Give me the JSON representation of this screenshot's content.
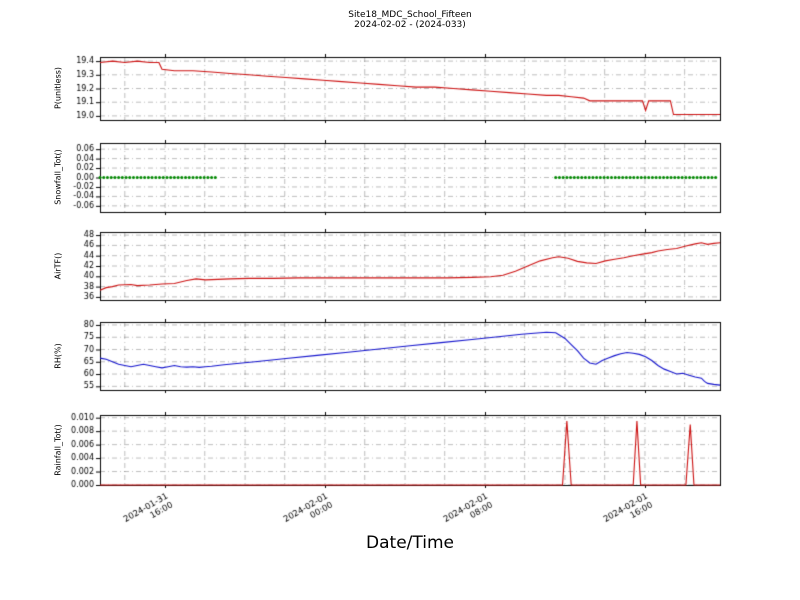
{
  "page": {
    "background": "#ffffff"
  },
  "chart_data": {
    "type": "line",
    "title": "Site18_MDC_School_Fifteen",
    "subtitle": "2024-02-02 - (2024-033)",
    "xlabel": "Date/Time",
    "grid": "dash-dot",
    "legend": "none",
    "x_axis": {
      "ticks": [
        {
          "frac": 0.105,
          "date": "2024-01-31",
          "time": "16:00"
        },
        {
          "frac": 0.363,
          "date": "2024-02-01",
          "time": "00:00"
        },
        {
          "frac": 0.621,
          "date": "2024-02-01",
          "time": "08:00"
        },
        {
          "frac": 0.879,
          "date": "2024-02-01",
          "time": "16:00"
        }
      ],
      "gridlines": [
        0.04,
        0.105,
        0.169,
        0.234,
        0.298,
        0.363,
        0.427,
        0.492,
        0.556,
        0.621,
        0.685,
        0.75,
        0.814,
        0.879,
        0.943
      ]
    },
    "panels": [
      {
        "ylabel": "P(unitless)",
        "ylim": [
          18.97,
          19.43
        ],
        "yticks": [
          {
            "v": 19.0,
            "label": "19.0"
          },
          {
            "v": 19.1,
            "label": "19.1"
          },
          {
            "v": 19.2,
            "label": "19.2"
          },
          {
            "v": 19.3,
            "label": "19.3"
          },
          {
            "v": 19.4,
            "label": "19.4"
          }
        ],
        "series": [
          {
            "name": "P",
            "type": "line",
            "color": "#cc1111",
            "points": [
              [
                0.0,
                19.39
              ],
              [
                0.02,
                19.4
              ],
              [
                0.04,
                19.39
              ],
              [
                0.06,
                19.4
              ],
              [
                0.08,
                19.39
              ],
              [
                0.095,
                19.39
              ],
              [
                0.1,
                19.34
              ],
              [
                0.12,
                19.33
              ],
              [
                0.15,
                19.33
              ],
              [
                0.18,
                19.32
              ],
              [
                0.21,
                19.31
              ],
              [
                0.24,
                19.3
              ],
              [
                0.27,
                19.29
              ],
              [
                0.3,
                19.28
              ],
              [
                0.33,
                19.27
              ],
              [
                0.36,
                19.26
              ],
              [
                0.39,
                19.25
              ],
              [
                0.42,
                19.24
              ],
              [
                0.45,
                19.23
              ],
              [
                0.48,
                19.22
              ],
              [
                0.51,
                19.21
              ],
              [
                0.54,
                19.21
              ],
              [
                0.57,
                19.2
              ],
              [
                0.6,
                19.19
              ],
              [
                0.63,
                19.18
              ],
              [
                0.66,
                19.17
              ],
              [
                0.69,
                19.16
              ],
              [
                0.72,
                19.15
              ],
              [
                0.74,
                19.15
              ],
              [
                0.76,
                19.14
              ],
              [
                0.78,
                19.13
              ],
              [
                0.79,
                19.11
              ],
              [
                0.8,
                19.11
              ],
              [
                0.82,
                19.11
              ],
              [
                0.84,
                19.11
              ],
              [
                0.86,
                19.11
              ],
              [
                0.875,
                19.11
              ],
              [
                0.88,
                19.04
              ],
              [
                0.885,
                19.11
              ],
              [
                0.9,
                19.11
              ],
              [
                0.92,
                19.11
              ],
              [
                0.925,
                19.01
              ],
              [
                0.94,
                19.01
              ],
              [
                0.96,
                19.01
              ],
              [
                0.98,
                19.01
              ],
              [
                1.0,
                19.01
              ]
            ]
          }
        ]
      },
      {
        "ylabel": "Snowfall_Tot()",
        "ylim": [
          -0.073,
          0.073
        ],
        "yticks": [
          {
            "v": -0.06,
            "label": "-0.06"
          },
          {
            "v": -0.04,
            "label": "-0.04"
          },
          {
            "v": -0.02,
            "label": "-0.02"
          },
          {
            "v": 0.0,
            "label": "0.00"
          },
          {
            "v": 0.02,
            "label": "0.02"
          },
          {
            "v": 0.04,
            "label": "0.04"
          },
          {
            "v": 0.06,
            "label": "0.06"
          }
        ],
        "series": [
          {
            "name": "Snowfall_Tot",
            "type": "dots",
            "color": "#008800",
            "value": 0.0,
            "segments": [
              [
                0.0,
                0.19
              ],
              [
                0.735,
                0.997
              ]
            ]
          }
        ]
      },
      {
        "ylabel": "AirTF()",
        "ylim": [
          35.4,
          48.6
        ],
        "yticks": [
          {
            "v": 36,
            "label": "36"
          },
          {
            "v": 38,
            "label": "38"
          },
          {
            "v": 40,
            "label": "40"
          },
          {
            "v": 42,
            "label": "42"
          },
          {
            "v": 44,
            "label": "44"
          },
          {
            "v": 46,
            "label": "46"
          },
          {
            "v": 48,
            "label": "48"
          }
        ],
        "series": [
          {
            "name": "AirTF",
            "type": "line",
            "color": "#cc1111",
            "points": [
              [
                0.0,
                37.3
              ],
              [
                0.01,
                37.8
              ],
              [
                0.02,
                38.0
              ],
              [
                0.03,
                38.3
              ],
              [
                0.05,
                38.4
              ],
              [
                0.06,
                38.2
              ],
              [
                0.08,
                38.3
              ],
              [
                0.1,
                38.5
              ],
              [
                0.12,
                38.6
              ],
              [
                0.14,
                39.2
              ],
              [
                0.155,
                39.5
              ],
              [
                0.17,
                39.3
              ],
              [
                0.19,
                39.4
              ],
              [
                0.21,
                39.5
              ],
              [
                0.24,
                39.6
              ],
              [
                0.28,
                39.6
              ],
              [
                0.32,
                39.7
              ],
              [
                0.36,
                39.7
              ],
              [
                0.4,
                39.7
              ],
              [
                0.44,
                39.7
              ],
              [
                0.48,
                39.7
              ],
              [
                0.52,
                39.7
              ],
              [
                0.56,
                39.7
              ],
              [
                0.6,
                39.8
              ],
              [
                0.63,
                39.9
              ],
              [
                0.65,
                40.2
              ],
              [
                0.67,
                41.0
              ],
              [
                0.69,
                42.0
              ],
              [
                0.71,
                43.0
              ],
              [
                0.73,
                43.6
              ],
              [
                0.74,
                43.8
              ],
              [
                0.755,
                43.5
              ],
              [
                0.77,
                42.9
              ],
              [
                0.785,
                42.6
              ],
              [
                0.8,
                42.5
              ],
              [
                0.815,
                43.0
              ],
              [
                0.83,
                43.3
              ],
              [
                0.845,
                43.6
              ],
              [
                0.86,
                44.0
              ],
              [
                0.875,
                44.3
              ],
              [
                0.89,
                44.6
              ],
              [
                0.9,
                44.9
              ],
              [
                0.915,
                45.2
              ],
              [
                0.93,
                45.4
              ],
              [
                0.945,
                45.9
              ],
              [
                0.96,
                46.3
              ],
              [
                0.97,
                46.5
              ],
              [
                0.98,
                46.2
              ],
              [
                0.99,
                46.4
              ],
              [
                1.0,
                46.5
              ]
            ]
          }
        ]
      },
      {
        "ylabel": "RH(%)",
        "ylim": [
          53.5,
          81.2
        ],
        "yticks": [
          {
            "v": 55,
            "label": "55"
          },
          {
            "v": 60,
            "label": "60"
          },
          {
            "v": 65,
            "label": "65"
          },
          {
            "v": 70,
            "label": "70"
          },
          {
            "v": 75,
            "label": "75"
          },
          {
            "v": 80,
            "label": "80"
          }
        ],
        "series": [
          {
            "name": "RH",
            "type": "line",
            "color": "#1111cc",
            "points": [
              [
                0.0,
                66.5
              ],
              [
                0.01,
                66.0
              ],
              [
                0.02,
                65.0
              ],
              [
                0.03,
                64.0
              ],
              [
                0.04,
                63.5
              ],
              [
                0.05,
                63.0
              ],
              [
                0.06,
                63.5
              ],
              [
                0.07,
                64.0
              ],
              [
                0.08,
                63.5
              ],
              [
                0.09,
                63.0
              ],
              [
                0.1,
                62.5
              ],
              [
                0.11,
                63.0
              ],
              [
                0.12,
                63.5
              ],
              [
                0.13,
                63.0
              ],
              [
                0.14,
                62.8
              ],
              [
                0.15,
                63.0
              ],
              [
                0.16,
                62.7
              ],
              [
                0.17,
                63.0
              ],
              [
                0.18,
                63.2
              ],
              [
                0.2,
                63.8
              ],
              [
                0.25,
                65.0
              ],
              [
                0.3,
                66.3
              ],
              [
                0.35,
                67.6
              ],
              [
                0.4,
                68.9
              ],
              [
                0.45,
                70.2
              ],
              [
                0.5,
                71.5
              ],
              [
                0.55,
                72.8
              ],
              [
                0.6,
                74.1
              ],
              [
                0.65,
                75.4
              ],
              [
                0.68,
                76.2
              ],
              [
                0.7,
                76.6
              ],
              [
                0.72,
                77.0
              ],
              [
                0.735,
                76.8
              ],
              [
                0.75,
                74.5
              ],
              [
                0.76,
                72.0
              ],
              [
                0.77,
                69.5
              ],
              [
                0.78,
                66.5
              ],
              [
                0.79,
                64.5
              ],
              [
                0.8,
                64.0
              ],
              [
                0.81,
                65.5
              ],
              [
                0.82,
                66.5
              ],
              [
                0.83,
                67.5
              ],
              [
                0.84,
                68.3
              ],
              [
                0.85,
                68.8
              ],
              [
                0.86,
                68.5
              ],
              [
                0.87,
                68.0
              ],
              [
                0.88,
                67.0
              ],
              [
                0.89,
                65.5
              ],
              [
                0.9,
                63.5
              ],
              [
                0.91,
                62.0
              ],
              [
                0.92,
                61.0
              ],
              [
                0.93,
                60.0
              ],
              [
                0.94,
                60.3
              ],
              [
                0.95,
                59.5
              ],
              [
                0.96,
                58.8
              ],
              [
                0.97,
                58.3
              ],
              [
                0.975,
                57.0
              ],
              [
                0.98,
                56.2
              ],
              [
                0.99,
                55.8
              ],
              [
                1.0,
                55.5
              ]
            ]
          }
        ]
      },
      {
        "ylabel": "Rainfall_Tot()",
        "ylim": [
          0.0,
          0.0104
        ],
        "yticks": [
          {
            "v": 0.0,
            "label": "0.000"
          },
          {
            "v": 0.002,
            "label": "0.002"
          },
          {
            "v": 0.004,
            "label": "0.004"
          },
          {
            "v": 0.006,
            "label": "0.006"
          },
          {
            "v": 0.008,
            "label": "0.008"
          },
          {
            "v": 0.01,
            "label": "0.010"
          }
        ],
        "series": [
          {
            "name": "Rainfall_Tot",
            "type": "line",
            "color": "#cc1111",
            "points": [
              [
                0.0,
                0.0
              ],
              [
                0.746,
                0.0
              ],
              [
                0.753,
                0.0095
              ],
              [
                0.76,
                0.0
              ],
              [
                0.86,
                0.0
              ],
              [
                0.866,
                0.0095
              ],
              [
                0.872,
                0.0
              ],
              [
                0.945,
                0.0
              ],
              [
                0.952,
                0.009
              ],
              [
                0.958,
                0.0
              ],
              [
                1.0,
                0.0
              ]
            ]
          }
        ]
      }
    ]
  }
}
